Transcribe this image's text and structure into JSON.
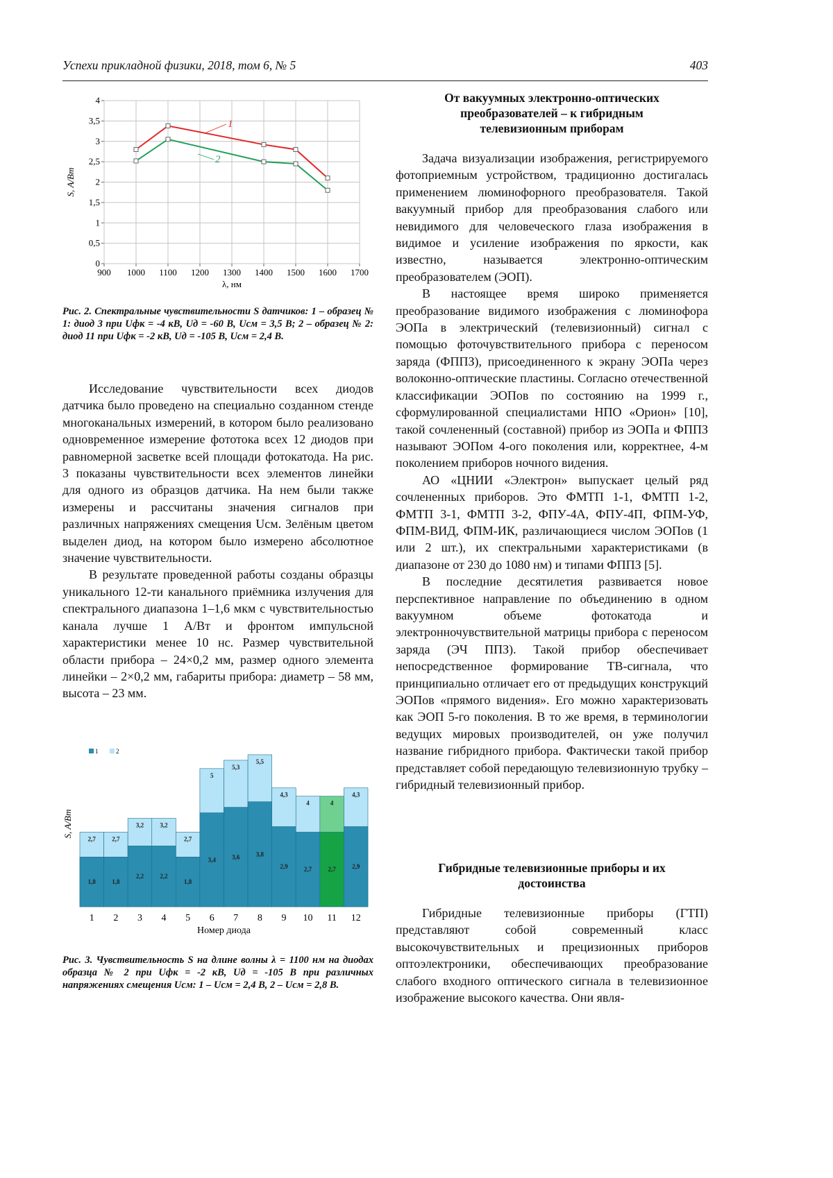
{
  "header": {
    "journal": "Успехи прикладной физики, 2018, том 6, № 5",
    "page": "403"
  },
  "figure2": {
    "chart_data": {
      "type": "line",
      "x_label": "λ, нм",
      "y_label": "S, А/Вт",
      "x": [
        1000,
        1100,
        1400,
        1500,
        1600
      ],
      "series": [
        {
          "name": "1",
          "color": "#e02828",
          "values": [
            2.8,
            3.38,
            2.92,
            2.8,
            2.1
          ]
        },
        {
          "name": "2",
          "color": "#22a05a",
          "values": [
            2.52,
            3.05,
            2.5,
            2.45,
            1.8
          ]
        }
      ],
      "xlim": [
        900,
        1700
      ],
      "xticks": [
        900,
        1000,
        1100,
        1200,
        1300,
        1400,
        1500,
        1600,
        1700
      ],
      "ylim": [
        0,
        4
      ],
      "yticks": [
        0,
        {
          "value": 0.5,
          "label": "0,5"
        },
        1,
        {
          "value": 1.5,
          "label": "1,5"
        },
        2,
        {
          "value": 2.5,
          "label": "2,5"
        },
        3,
        {
          "value": 3.5,
          "label": "3,5"
        },
        4
      ],
      "grid": true
    },
    "caption": "Рис. 2. Спектральные чувствительности S датчиков: 1 – образец № 1: диод 3 при Uфк = -4 кВ, Uд = -60 В, Uсм = 3,5 В; 2 – образец № 2: диод 11 при Uфк = -2 кВ, Uд = -105 В, Uсм = 2,4 В."
  },
  "left_paragraphs": [
    "Исследование чувствительности всех диодов датчика было проведено на специально созданном стенде многоканальных измерений, в котором было реализовано одновременное измерение фототока всех 12 диодов при равномерной засветке всей площади фотокатода. На рис. 3 показаны чувствительности всех элементов линейки для одного из образцов датчика. На нем были также измерены и рассчитаны значения сигналов при различных напряжениях смещения Uсм. Зелёным цветом выделен диод, на котором было измерено абсолютное значение чувствительности.",
    "В результате проведенной работы созданы образцы уникального 12-ти канального приёмника излучения для спектрального диапазона 1–1,6 мкм с чувствительностью канала лучше 1 А/Вт и фронтом импульсной характеристики менее 10 нс. Размер чувствительной области прибора – 24×0,2 мм, размер одного элемента линейки – 2×0,2 мм, габариты прибора: диаметр – 58 мм, высота – 23 мм."
  ],
  "figure3": {
    "chart_data": {
      "type": "bar",
      "x_label": "Номер диода",
      "y_label": "S, А/Вт",
      "categories": [
        "1",
        "2",
        "3",
        "4",
        "5",
        "6",
        "7",
        "8",
        "9",
        "10",
        "11",
        "12"
      ],
      "series": [
        {
          "name": "1",
          "color": "#2b8db0",
          "colors": [
            "#2b8db0",
            "#2b8db0",
            "#2b8db0",
            "#2b8db0",
            "#2b8db0",
            "#2b8db0",
            "#2b8db0",
            "#2b8db0",
            "#2b8db0",
            "#2b8db0",
            "#16a346",
            "#2b8db0"
          ],
          "values": [
            1.8,
            1.8,
            2.2,
            2.2,
            1.8,
            3.4,
            3.6,
            3.8,
            2.9,
            2.7,
            2.7,
            2.9
          ],
          "value_labels": [
            "1,8",
            "1,8",
            "2,2",
            "2,2",
            "1,8",
            "3,4",
            "3,6",
            "3,8",
            "2,9",
            "2,7",
            "2,7",
            "2,9"
          ]
        },
        {
          "name": "2",
          "color": "#b5e3f7",
          "colors": [
            "#b5e3f7",
            "#b5e3f7",
            "#b5e3f7",
            "#b5e3f7",
            "#b5e3f7",
            "#b5e3f7",
            "#b5e3f7",
            "#b5e3f7",
            "#b5e3f7",
            "#b5e3f7",
            "#6fd08f",
            "#b5e3f7"
          ],
          "values": [
            2.7,
            2.7,
            3.2,
            3.2,
            2.7,
            5,
            5.3,
            5.5,
            4.3,
            4,
            4,
            4.3
          ],
          "value_labels": [
            "2,7",
            "2,7",
            "3,2",
            "3,2",
            "2,7",
            "5",
            "5,3",
            "5,5",
            "4,3",
            "4",
            "4",
            "4,3"
          ]
        }
      ],
      "ylim": [
        0,
        6
      ],
      "legend": "top-left"
    },
    "caption": "Рис. 3. Чувствительность S на длине волны λ = 1100 нм на диодах образца № 2 при Uфк = -2 кВ, Uд = -105 В при различных напряжениях смещения Uсм: 1 – Uсм = 2,4 В, 2 – Uсм = 2,8 В."
  },
  "section1": {
    "title": "От вакуумных электронно-оптических преобразователей – к гибридным телевизионным приборам",
    "paragraphs": [
      "Задача визуализации изображения, регистрируемого фотоприемным устройством, традиционно достигалась применением люминофорного преобразователя. Такой вакуумный прибор для преобразования слабого или невидимого для человеческого глаза изображения в видимое и усиление изображения по яркости, как известно, называется электронно-оптическим преобразователем (ЭОП).",
      "В настоящее время широко применяется преобразование видимого изображения с люминофора ЭОПа в электрический (телевизионный) сигнал с помощью фоточувствительного прибора с переносом заряда (ФППЗ), присоединенного к экрану ЭОПа через волоконно-оптические пластины. Согласно отечественной классификации ЭОПов по состоянию на 1999 г., сформулированной специалистами НПО «Орион» [10], такой сочлененный (составной) прибор из ЭОПа и ФППЗ называют ЭОПом 4-ого поколения или, корректнее, 4-м поколением приборов ночного видения.",
      "АО «ЦНИИ «Электрон» выпускает целый ряд сочлененных приборов. Это ФМТП 1-1, ФМТП 1-2, ФМТП 3-1, ФМТП 3-2, ФПУ-4А, ФПУ-4П, ФПМ-УФ, ФПМ-ВИД, ФПМ-ИК, различающиеся числом ЭОПов (1 или 2 шт.), их спектральными характеристиками (в диапазоне от 230 до 1080 нм) и типами ФППЗ [5].",
      "В последние десятилетия развивается новое перспективное направление по объединению в одном вакуумном объеме фотокатода и электронночувствительной матрицы прибора с переносом заряда (ЭЧ ППЗ). Такой прибор обеспечивает непосредственное формирование ТВ-сигнала, что принципиально отличает его от предыдущих конструкций ЭОПов «прямого видения». Его можно характеризовать как ЭОП 5-го поколения. В то же время, в терминологии ведущих мировых производителей, он уже получил название гибридного прибора. Фактически такой прибор представляет собой передающую телевизионную трубку – гибридный телевизионный прибор."
    ]
  },
  "section2": {
    "title": "Гибридные телевизионные приборы и их достоинства",
    "paragraphs": [
      "Гибридные телевизионные приборы (ГТП) представляют собой современный класс высокочувствительных и прецизионных приборов оптоэлектроники, обеспечивающих преобразование слабого входного оптического сигнала в телевизионное изображение высокого качества. Они явля-"
    ]
  }
}
